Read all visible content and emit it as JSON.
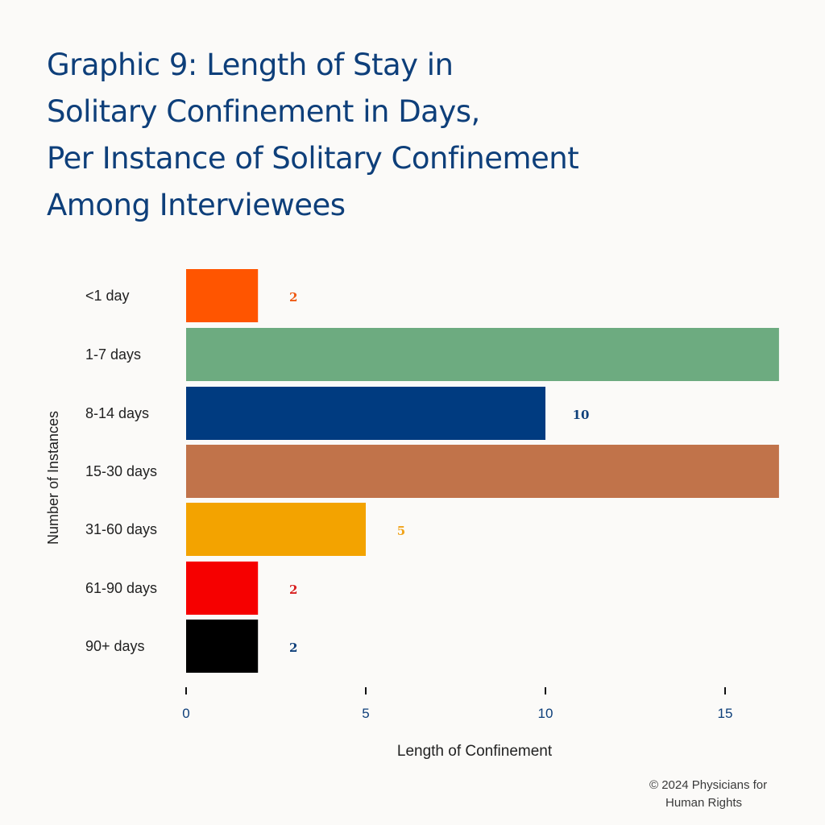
{
  "title_lines": [
    "Graphic 9: Length of Stay in",
    "Solitary Confinement in Days,",
    "Per Instance of Solitary Confinement",
    "Among Interviewees"
  ],
  "credit_lines": [
    "© 2024 Physicians for",
    "Human Rights"
  ],
  "chart_data": {
    "type": "bar",
    "orientation": "horizontal",
    "title": "Graphic 9: Length of Stay in Solitary Confinement in Days, Per Instance of Solitary Confinement Among Interviewees",
    "xlabel": "Length of Confinement",
    "ylabel": "Number of Instances",
    "xlim": [
      0,
      16.5
    ],
    "xticks": [
      0,
      5,
      10,
      15
    ],
    "grid": false,
    "categories": [
      "<1 day",
      "1-7 days",
      "8-14 days",
      "15-30 days",
      "31-60 days",
      "61-90 days",
      "90+ days"
    ],
    "values": [
      2,
      16.5,
      10,
      16.5,
      5,
      2,
      2
    ],
    "data_labels": [
      "2",
      "",
      "10",
      "",
      "5",
      "2",
      "2"
    ],
    "bar_colors": [
      "#ff5500",
      "#6dab80",
      "#003b80",
      "#c1734a",
      "#f3a300",
      "#f60000",
      "#000000"
    ],
    "label_colors": [
      "#ef5a13",
      "#6dab80",
      "#0e3f7a",
      "#c1734a",
      "#f0a31a",
      "#d81e1e",
      "#0e3f7a"
    ],
    "axis_color": "#0e3f7a"
  }
}
